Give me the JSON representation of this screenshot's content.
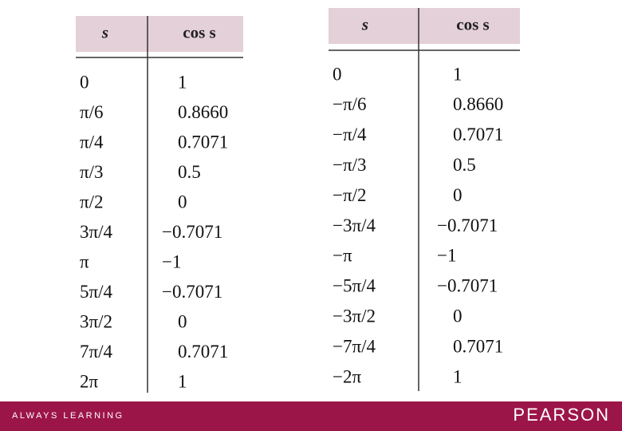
{
  "tables": [
    {
      "headers": [
        "s",
        "cos s"
      ],
      "rows": [
        [
          "0",
          "1"
        ],
        [
          "π/6",
          "0.8660"
        ],
        [
          "π/4",
          "0.7071"
        ],
        [
          "π/3",
          "0.5"
        ],
        [
          "π/2",
          "0"
        ],
        [
          "3π/4",
          "−0.7071"
        ],
        [
          "π",
          "−1"
        ],
        [
          "5π/4",
          "−0.7071"
        ],
        [
          "3π/2",
          "0"
        ],
        [
          "7π/4",
          "0.7071"
        ],
        [
          "2π",
          "1"
        ]
      ]
    },
    {
      "headers": [
        "s",
        "cos s"
      ],
      "rows": [
        [
          "0",
          "1"
        ],
        [
          "−π/6",
          "0.8660"
        ],
        [
          "−π/4",
          "0.7071"
        ],
        [
          "−π/3",
          "0.5"
        ],
        [
          "−π/2",
          "0"
        ],
        [
          "−3π/4",
          "−0.7071"
        ],
        [
          "−π",
          "−1"
        ],
        [
          "−5π/4",
          "−0.7071"
        ],
        [
          "−3π/2",
          "0"
        ],
        [
          "−7π/4",
          "0.7071"
        ],
        [
          "−2π",
          "1"
        ]
      ]
    }
  ],
  "footer": {
    "tagline": "ALWAYS LEARNING",
    "brand": "PEARSON"
  }
}
